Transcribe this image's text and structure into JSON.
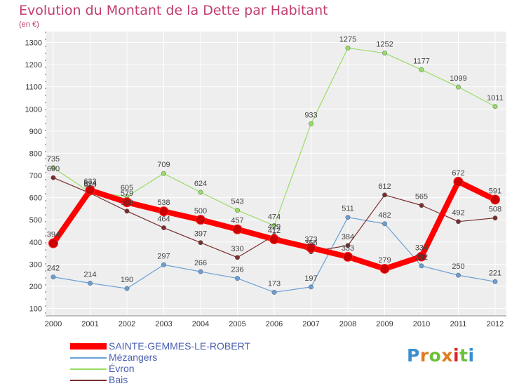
{
  "title": "Evolution du Montant de la Dette par Habitant",
  "subtitle": "(en €)",
  "logo_text": "Proxiti",
  "chart_data": {
    "type": "line",
    "title": "Evolution du Montant de la Dette par Habitant",
    "ylabel": "(en €)",
    "x": [
      "2000",
      "2001",
      "2002",
      "2003",
      "2004",
      "2005",
      "2006",
      "2007",
      "2008",
      "2009",
      "2010",
      "2011",
      "2012"
    ],
    "yticks": [
      "100",
      "200",
      "300",
      "400",
      "500",
      "600",
      "700",
      "800",
      "900",
      "1000",
      "1100",
      "1200",
      "1300"
    ],
    "ylim": [
      100,
      1300
    ],
    "grid": true,
    "legend_position": "bottom-left",
    "series": [
      {
        "name": "SAINTE-GEMMES-LE-ROBERT",
        "color": "#ff0000",
        "values": [
          394,
          633,
          579,
          538,
          500,
          457,
          412,
          373,
          333,
          279,
          334,
          672,
          591
        ],
        "labels": [
          "394",
          "633",
          "579",
          "538",
          "500",
          "457",
          "412",
          "373",
          "333",
          "279",
          "334",
          "672",
          "591"
        ]
      },
      {
        "name": "Mézangers",
        "color": "#6a9fd6",
        "values": [
          242,
          214,
          190,
          297,
          266,
          236,
          173,
          197,
          511,
          482,
          292,
          250,
          221
        ],
        "labels": [
          "242",
          "214",
          "190",
          "297",
          "266",
          "236",
          "173",
          "197",
          "511",
          "482",
          "292",
          "250",
          "221"
        ]
      },
      {
        "name": "Évron",
        "color": "#99dd66",
        "values": [
          735,
          624,
          605,
          709,
          624,
          543,
          474,
          933,
          1275,
          1252,
          1177,
          1099,
          1011
        ],
        "labels": [
          "735",
          "624",
          "605",
          "709",
          "624",
          "543",
          "474",
          "933",
          "1275",
          "1252",
          "1177",
          "1099",
          "1011"
        ]
      },
      {
        "name": "Bais",
        "color": "#7a2e2e",
        "values": [
          690,
          620,
          539,
          464,
          397,
          330,
          429,
          356,
          384,
          612,
          565,
          492,
          508
        ],
        "labels": [
          "690",
          "620",
          "539",
          "464",
          "397",
          "330",
          "429",
          "356",
          "384",
          "612",
          "565",
          "492",
          "508"
        ]
      }
    ]
  }
}
